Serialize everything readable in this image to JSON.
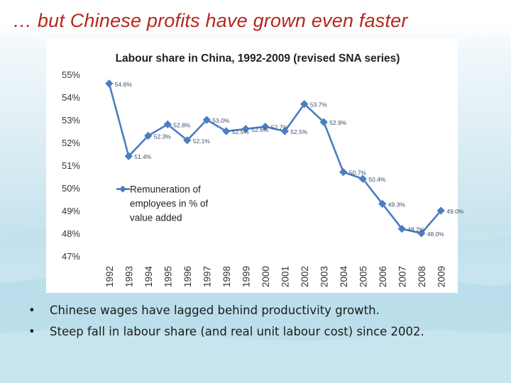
{
  "slide": {
    "title": "… but Chinese profits have grown even faster",
    "bullet_marker": "•",
    "bullets": [
      "Chinese wages have lagged behind productivity growth.",
      "Steep fall in labour share (and real unit labour cost) since 2002."
    ]
  },
  "colors": {
    "title": "#b7271a",
    "series": "#4a7ebf",
    "text": "#1c1c1c"
  },
  "chart_data": {
    "type": "line",
    "title": "Labour share in China, 1992-2009 (revised SNA series)",
    "xlabel": "",
    "ylabel": "",
    "categories": [
      "1992",
      "1993",
      "1994",
      "1995",
      "1996",
      "1997",
      "1998",
      "1999",
      "2000",
      "2001",
      "2002",
      "2003",
      "2004",
      "2005",
      "2006",
      "2007",
      "2008",
      "2009"
    ],
    "ylim": [
      47,
      55
    ],
    "yticks": [
      "47%",
      "48%",
      "49%",
      "50%",
      "51%",
      "52%",
      "53%",
      "54%",
      "55%"
    ],
    "grid": false,
    "legend_position": "inside-left",
    "series": [
      {
        "name": "Remuneration of employees in % of value added",
        "name_lines": [
          "Remuneration of",
          "employees in % of",
          "value added"
        ],
        "values": [
          54.6,
          51.4,
          52.3,
          52.8,
          52.1,
          53.0,
          52.5,
          52.6,
          52.7,
          52.5,
          53.7,
          52.9,
          50.7,
          50.4,
          49.3,
          48.2,
          48.0,
          49.0
        ],
        "labels": [
          "54.6%",
          "51.4%",
          "52.3%",
          "52.8%",
          "52.1%",
          "53.0%",
          "52.5%",
          "52.6%",
          "52.7%",
          "52.5%",
          "53.7%",
          "52.9%",
          "50.7%",
          "50.4%",
          "49.3%",
          "48.2%",
          "48.0%",
          "49.0%"
        ]
      }
    ]
  }
}
